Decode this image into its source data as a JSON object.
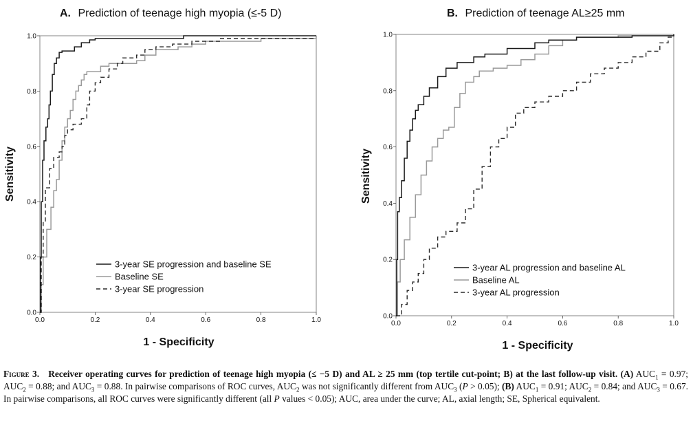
{
  "chart_data": [
    {
      "type": "line",
      "panel_letter": "A.",
      "title": "Prediction of teenage high myopia (≤-5 D)",
      "xlabel": "1 - Specificity",
      "ylabel": "Sensitivity",
      "xlim": [
        0,
        1
      ],
      "ylim": [
        0,
        1
      ],
      "xticks": [
        "0.0",
        "0.2",
        "0.4",
        "0.6",
        "0.8",
        "1.0"
      ],
      "yticks": [
        "0.0",
        "0.2",
        "0.4",
        "0.6",
        "0.8",
        "1.0"
      ],
      "grid": false,
      "legend_position": "bottom-left",
      "series": [
        {
          "name": "3-year SE progression and baseline SE",
          "color": "#1a1a1a",
          "style": "solid",
          "points": [
            [
              0,
              0
            ],
            [
              0.002,
              0.2
            ],
            [
              0.005,
              0.4
            ],
            [
              0.01,
              0.55
            ],
            [
              0.015,
              0.62
            ],
            [
              0.022,
              0.67
            ],
            [
              0.028,
              0.7
            ],
            [
              0.033,
              0.75
            ],
            [
              0.038,
              0.8
            ],
            [
              0.045,
              0.86
            ],
            [
              0.052,
              0.9
            ],
            [
              0.06,
              0.92
            ],
            [
              0.07,
              0.94
            ],
            [
              0.08,
              0.945
            ],
            [
              0.1,
              0.945
            ],
            [
              0.12,
              0.945
            ],
            [
              0.125,
              0.96
            ],
            [
              0.15,
              0.975
            ],
            [
              0.18,
              0.985
            ],
            [
              0.2,
              0.99
            ],
            [
              0.5,
              0.99
            ],
            [
              0.52,
              1.0
            ],
            [
              1.0,
              1.0
            ]
          ]
        },
        {
          "name": "Baseline SE",
          "color": "#9a9a9a",
          "style": "solid",
          "points": [
            [
              0,
              0
            ],
            [
              0.005,
              0.1
            ],
            [
              0.012,
              0.2
            ],
            [
              0.025,
              0.3
            ],
            [
              0.04,
              0.38
            ],
            [
              0.05,
              0.44
            ],
            [
              0.06,
              0.48
            ],
            [
              0.07,
              0.55
            ],
            [
              0.08,
              0.62
            ],
            [
              0.09,
              0.67
            ],
            [
              0.1,
              0.7
            ],
            [
              0.11,
              0.73
            ],
            [
              0.12,
              0.77
            ],
            [
              0.13,
              0.8
            ],
            [
              0.14,
              0.82
            ],
            [
              0.15,
              0.84
            ],
            [
              0.16,
              0.86
            ],
            [
              0.17,
              0.87
            ],
            [
              0.2,
              0.87
            ],
            [
              0.22,
              0.89
            ],
            [
              0.25,
              0.9
            ],
            [
              0.3,
              0.9
            ],
            [
              0.35,
              0.91
            ],
            [
              0.38,
              0.93
            ],
            [
              0.42,
              0.95
            ],
            [
              0.5,
              0.96
            ],
            [
              0.55,
              0.97
            ],
            [
              0.6,
              0.98
            ],
            [
              0.8,
              0.99
            ],
            [
              1.0,
              1.0
            ]
          ]
        },
        {
          "name": "3-year SE progression",
          "color": "#2a2a2a",
          "style": "dashed",
          "points": [
            [
              0,
              0
            ],
            [
              0.005,
              0.2
            ],
            [
              0.012,
              0.33
            ],
            [
              0.02,
              0.45
            ],
            [
              0.035,
              0.52
            ],
            [
              0.05,
              0.56
            ],
            [
              0.07,
              0.58
            ],
            [
              0.08,
              0.6
            ],
            [
              0.09,
              0.64
            ],
            [
              0.1,
              0.66
            ],
            [
              0.12,
              0.68
            ],
            [
              0.15,
              0.7
            ],
            [
              0.17,
              0.75
            ],
            [
              0.18,
              0.8
            ],
            [
              0.2,
              0.83
            ],
            [
              0.22,
              0.85
            ],
            [
              0.25,
              0.88
            ],
            [
              0.28,
              0.9
            ],
            [
              0.3,
              0.92
            ],
            [
              0.35,
              0.93
            ],
            [
              0.38,
              0.95
            ],
            [
              0.42,
              0.96
            ],
            [
              0.48,
              0.97
            ],
            [
              0.55,
              0.98
            ],
            [
              0.65,
              0.99
            ],
            [
              1.0,
              0.99
            ]
          ]
        }
      ]
    },
    {
      "type": "line",
      "panel_letter": "B.",
      "title": "Prediction of teenage AL≥25 mm",
      "xlabel": "1 - Specificity",
      "ylabel": "Sensitivity",
      "xlim": [
        0,
        1
      ],
      "ylim": [
        0,
        1
      ],
      "xticks": [
        "0.0",
        "0.2",
        "0.4",
        "0.6",
        "0.8",
        "1.0"
      ],
      "yticks": [
        "0.0",
        "0.2",
        "0.4",
        "0.6",
        "0.8",
        "1.0"
      ],
      "grid": false,
      "legend_position": "bottom-left",
      "series": [
        {
          "name": "3-year AL progression and baseline AL",
          "color": "#1a1a1a",
          "style": "solid",
          "points": [
            [
              0,
              0
            ],
            [
              0.003,
              0.2
            ],
            [
              0.006,
              0.37
            ],
            [
              0.012,
              0.42
            ],
            [
              0.02,
              0.48
            ],
            [
              0.03,
              0.56
            ],
            [
              0.04,
              0.62
            ],
            [
              0.05,
              0.66
            ],
            [
              0.06,
              0.7
            ],
            [
              0.07,
              0.73
            ],
            [
              0.08,
              0.75
            ],
            [
              0.1,
              0.78
            ],
            [
              0.12,
              0.81
            ],
            [
              0.15,
              0.85
            ],
            [
              0.18,
              0.88
            ],
            [
              0.22,
              0.9
            ],
            [
              0.28,
              0.92
            ],
            [
              0.32,
              0.93
            ],
            [
              0.4,
              0.95
            ],
            [
              0.5,
              0.97
            ],
            [
              0.55,
              0.98
            ],
            [
              0.65,
              0.99
            ],
            [
              0.85,
              0.995
            ],
            [
              1.0,
              1.0
            ]
          ]
        },
        {
          "name": "Baseline AL",
          "color": "#9a9a9a",
          "style": "solid",
          "points": [
            [
              0,
              0
            ],
            [
              0.005,
              0.12
            ],
            [
              0.015,
              0.2
            ],
            [
              0.03,
              0.27
            ],
            [
              0.05,
              0.35
            ],
            [
              0.07,
              0.43
            ],
            [
              0.09,
              0.5
            ],
            [
              0.11,
              0.55
            ],
            [
              0.13,
              0.6
            ],
            [
              0.15,
              0.63
            ],
            [
              0.17,
              0.66
            ],
            [
              0.19,
              0.67
            ],
            [
              0.21,
              0.74
            ],
            [
              0.23,
              0.79
            ],
            [
              0.25,
              0.83
            ],
            [
              0.28,
              0.85
            ],
            [
              0.3,
              0.87
            ],
            [
              0.35,
              0.88
            ],
            [
              0.4,
              0.89
            ],
            [
              0.45,
              0.91
            ],
            [
              0.5,
              0.93
            ],
            [
              0.55,
              0.96
            ],
            [
              0.6,
              0.98
            ],
            [
              0.65,
              0.99
            ],
            [
              0.8,
              0.995
            ],
            [
              1.0,
              1.0
            ]
          ]
        },
        {
          "name": "3-year AL progression",
          "color": "#2a2a2a",
          "style": "dashed",
          "points": [
            [
              0,
              0
            ],
            [
              0.02,
              0.04
            ],
            [
              0.04,
              0.09
            ],
            [
              0.06,
              0.12
            ],
            [
              0.08,
              0.15
            ],
            [
              0.1,
              0.2
            ],
            [
              0.12,
              0.24
            ],
            [
              0.15,
              0.28
            ],
            [
              0.18,
              0.3
            ],
            [
              0.22,
              0.33
            ],
            [
              0.25,
              0.38
            ],
            [
              0.28,
              0.45
            ],
            [
              0.31,
              0.53
            ],
            [
              0.34,
              0.6
            ],
            [
              0.37,
              0.63
            ],
            [
              0.4,
              0.67
            ],
            [
              0.43,
              0.72
            ],
            [
              0.46,
              0.74
            ],
            [
              0.5,
              0.76
            ],
            [
              0.55,
              0.78
            ],
            [
              0.6,
              0.8
            ],
            [
              0.65,
              0.83
            ],
            [
              0.7,
              0.86
            ],
            [
              0.75,
              0.88
            ],
            [
              0.8,
              0.9
            ],
            [
              0.85,
              0.92
            ],
            [
              0.9,
              0.94
            ],
            [
              0.95,
              0.97
            ],
            [
              0.98,
              0.99
            ],
            [
              1.0,
              1.0
            ]
          ]
        }
      ]
    }
  ],
  "caption": {
    "label": "Figure 3.",
    "title": "Receiver operating curves for prediction of teenage high myopia (≤ −5 D) and AL ≥ 25 mm (top tertile cut-point; B) at the last follow-up visit.",
    "a_label": "(A)",
    "a_text_1": " AUC",
    "a_text_2": " = 0.97; AUC",
    "a_text_3": " = 0.88; and AUC",
    "a_text_4": " = 0.88. In pairwise comparisons of ROC curves, AUC",
    "a_text_5": " was not significantly different from AUC",
    "a_text_6": " (",
    "p_symbol": "P",
    "a_text_7": " > 0.05); ",
    "b_label": "(B)",
    "b_text_1": " AUC",
    "b_text_2": " = 0.91; AUC",
    "b_text_3": " = 0.84; and AUC",
    "b_text_4": " = 0.67. In pairwise comparisons, all ROC curves were significantly different (all ",
    "p_symbol_2": "P",
    "b_text_5": " values < 0.05); AUC, area under the curve; AL, axial length; SE, Spherical equivalent.",
    "sub_1": "1",
    "sub_2": "2",
    "sub_3": "3"
  }
}
